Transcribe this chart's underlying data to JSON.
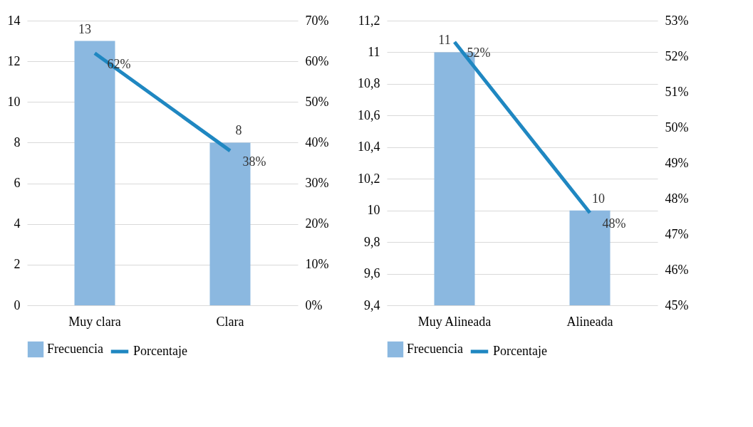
{
  "chart_data": [
    {
      "type": "bar",
      "categories": [
        "Muy clara",
        "Clara"
      ],
      "series": [
        {
          "name": "Frecuencia",
          "color": "#8bb8e0",
          "values": [
            13,
            8
          ],
          "value_labels": [
            "13",
            "8"
          ]
        },
        {
          "name": "Porcentaje",
          "type": "line",
          "axis": "y2",
          "color": "#1f87c1",
          "values": [
            62,
            38
          ],
          "value_labels": [
            "62%",
            "38%"
          ]
        }
      ],
      "ylim": [
        0,
        14
      ],
      "yticks": [
        0,
        2,
        4,
        6,
        8,
        10,
        12,
        14
      ],
      "y2lim": [
        0,
        70
      ],
      "y2ticks": [
        {
          "value": 0,
          "label": "0%"
        },
        {
          "value": 10,
          "label": "10%"
        },
        {
          "value": 20,
          "label": "20%"
        },
        {
          "value": 30,
          "label": "30%"
        },
        {
          "value": 40,
          "label": "40%"
        },
        {
          "value": 50,
          "label": "50%"
        },
        {
          "value": 60,
          "label": "60%"
        },
        {
          "value": 70,
          "label": "70%"
        }
      ],
      "grid": "y",
      "legend": "bottom"
    },
    {
      "type": "bar",
      "categories": [
        "Muy Alineada",
        "Alineada"
      ],
      "series": [
        {
          "name": "Frecuencia",
          "color": "#8bb8e0",
          "values": [
            11,
            10
          ],
          "value_labels": [
            "11",
            "10"
          ]
        },
        {
          "name": "Porcentaje",
          "type": "line",
          "axis": "y2",
          "color": "#1f87c1",
          "values": [
            52.4,
            47.6
          ],
          "value_labels": [
            "52%",
            "48%"
          ]
        }
      ],
      "ylim": [
        9.4,
        11.2
      ],
      "yticks": [
        {
          "value": 9.4,
          "label": "9,4"
        },
        {
          "value": 9.6,
          "label": "9,6"
        },
        {
          "value": 9.8,
          "label": "9,8"
        },
        10,
        {
          "value": 10.2,
          "label": "10,2"
        },
        {
          "value": 10.4,
          "label": "10,4"
        },
        {
          "value": 10.6,
          "label": "10,6"
        },
        {
          "value": 10.8,
          "label": "10,8"
        },
        11,
        {
          "value": 11.2,
          "label": "11,2"
        }
      ],
      "y2lim": [
        45,
        53
      ],
      "y2ticks": [
        {
          "value": 45,
          "label": "45%"
        },
        {
          "value": 46,
          "label": "46%"
        },
        {
          "value": 47,
          "label": "47%"
        },
        {
          "value": 48,
          "label": "48%"
        },
        {
          "value": 49,
          "label": "49%"
        },
        {
          "value": 50,
          "label": "50%"
        },
        {
          "value": 51,
          "label": "51%"
        },
        {
          "value": 52,
          "label": "52%"
        },
        {
          "value": 53,
          "label": "53%"
        }
      ],
      "grid": "y",
      "legend": "bottom"
    }
  ]
}
